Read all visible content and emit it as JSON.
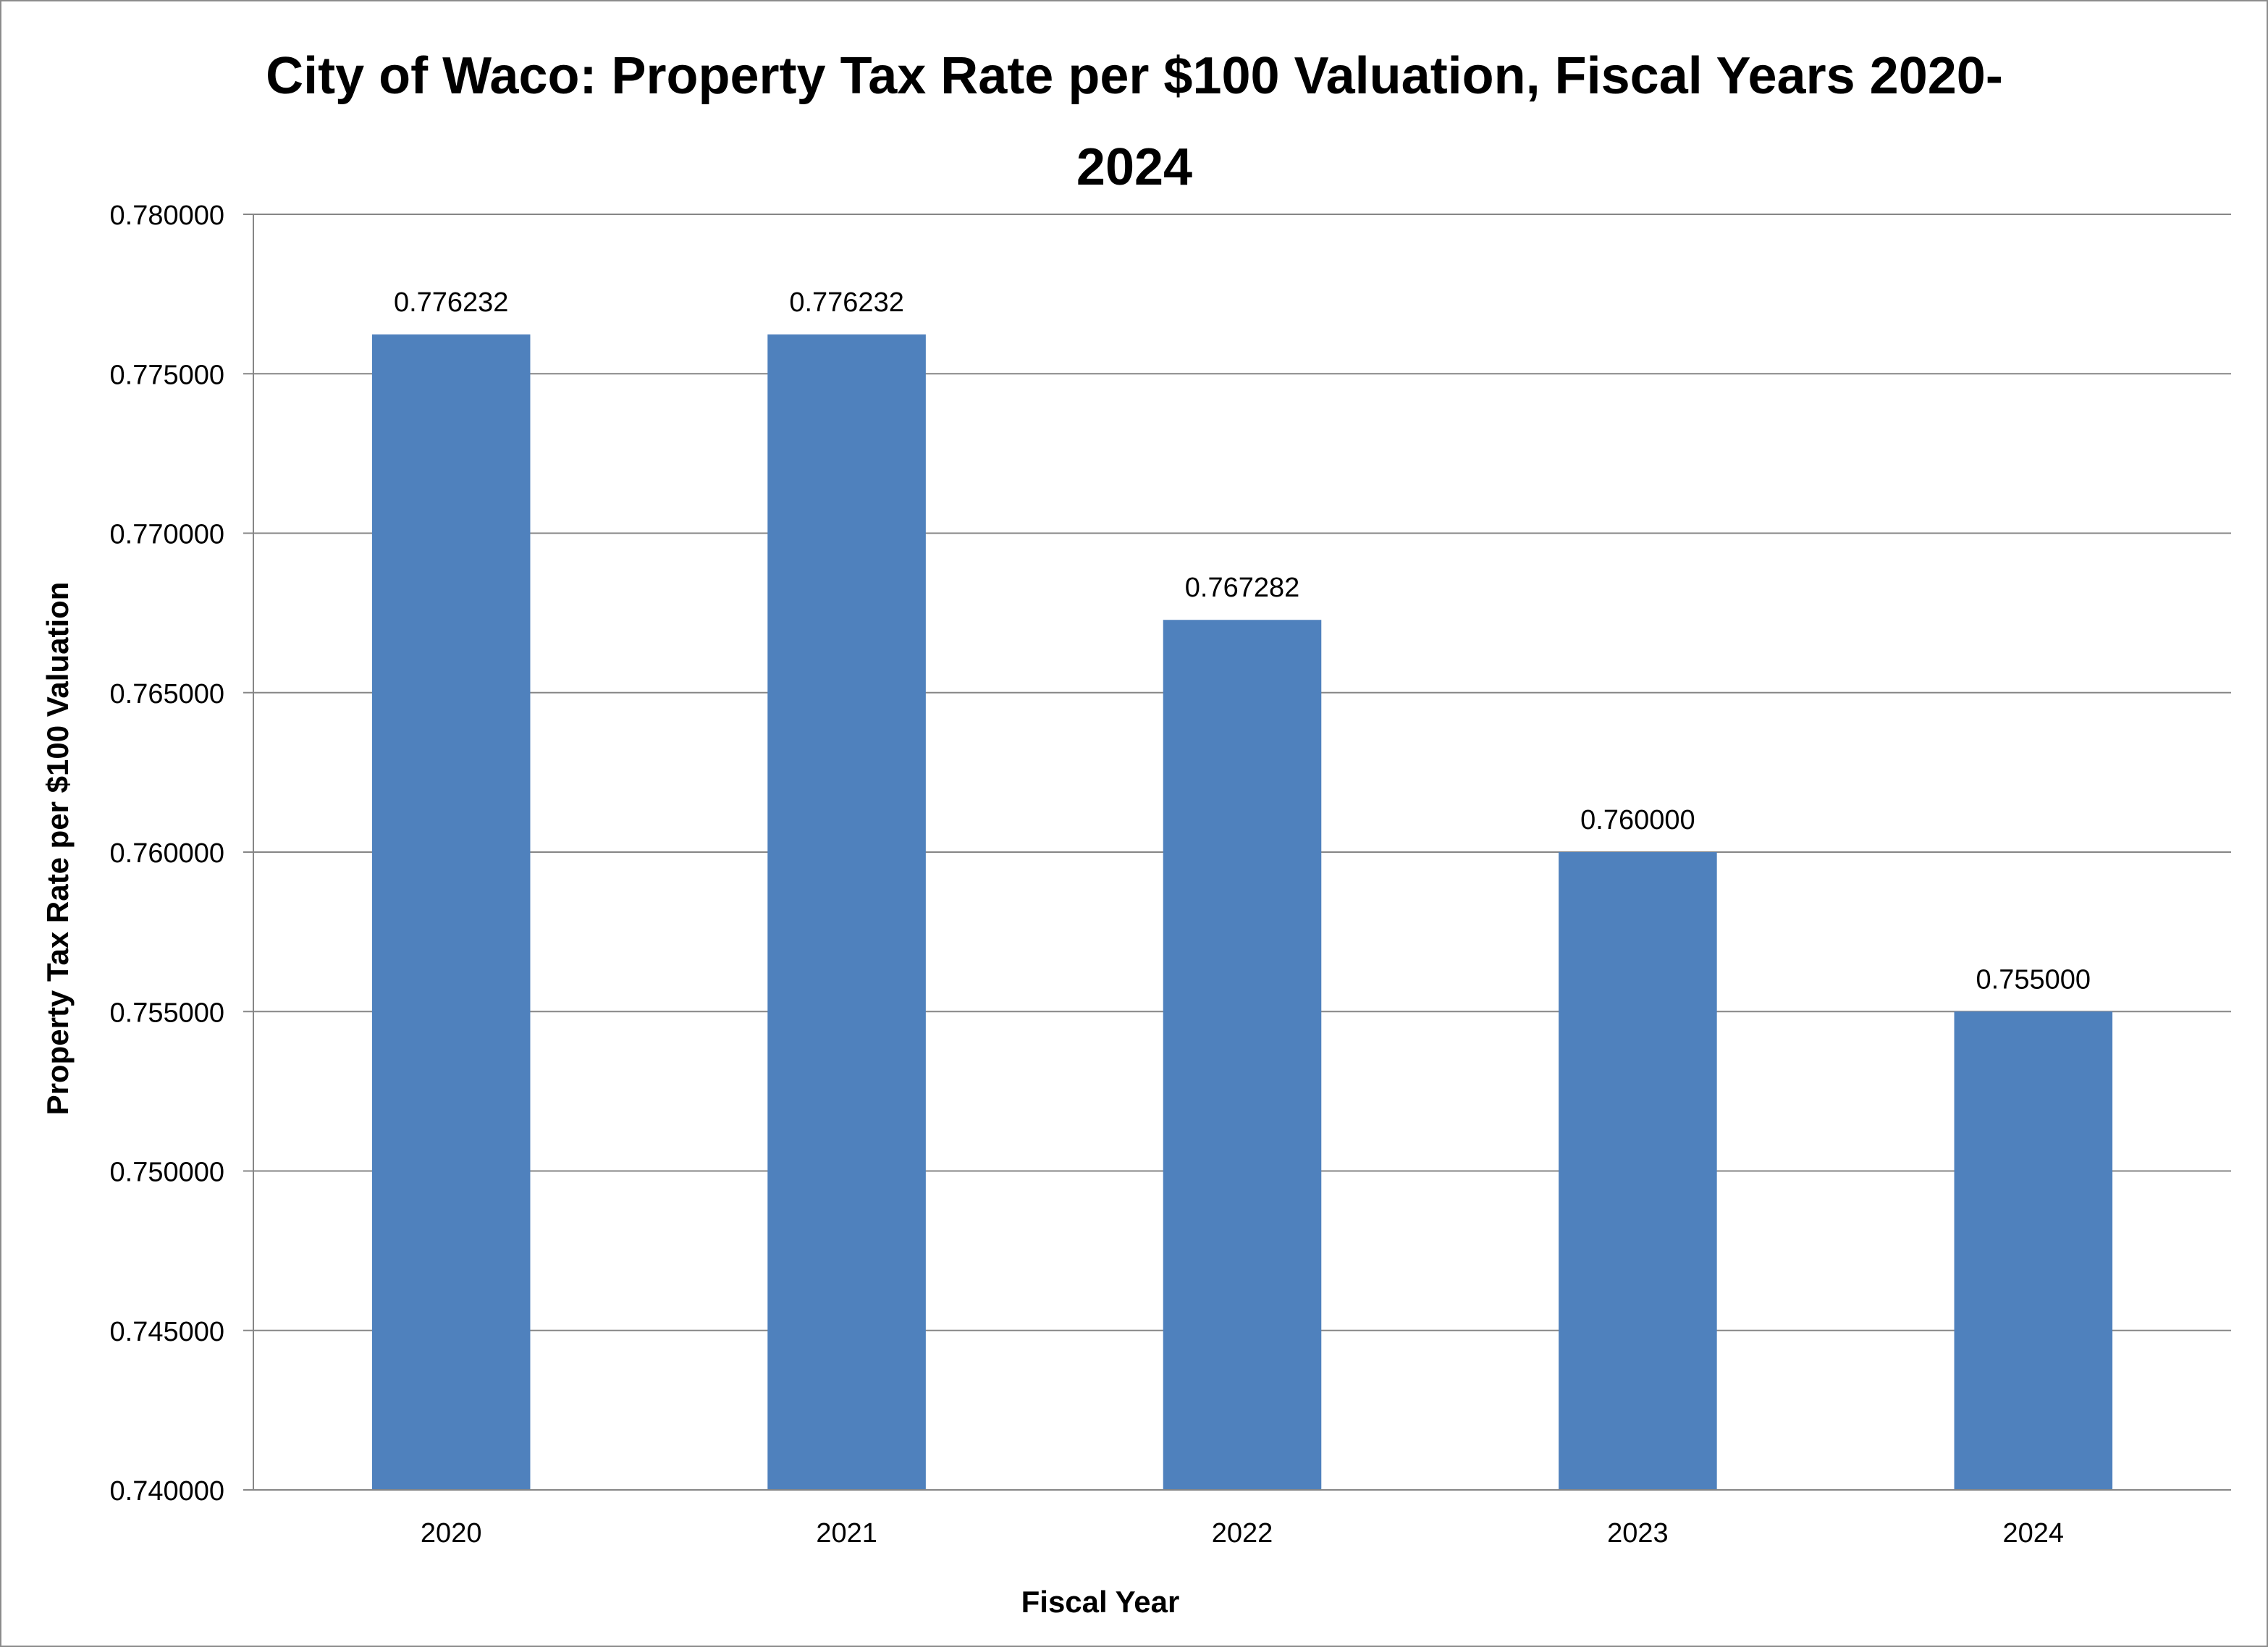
{
  "chart_data": {
    "type": "bar",
    "title": "City of Waco: Property Tax Rate per $100 Valuation, Fiscal Years 2020-2024",
    "xlabel": "Fiscal Year",
    "ylabel": "Property Tax Rate per $100 Valuation",
    "categories": [
      "2020",
      "2021",
      "2022",
      "2023",
      "2024"
    ],
    "values": [
      0.776232,
      0.776232,
      0.767282,
      0.76,
      0.755
    ],
    "data_labels": [
      "0.776232",
      "0.776232",
      "0.767282",
      "0.760000",
      "0.755000"
    ],
    "ylim": [
      0.74,
      0.78
    ],
    "yticks": [
      0.74,
      0.745,
      0.75,
      0.755,
      0.76,
      0.765,
      0.77,
      0.775,
      0.78
    ],
    "ytick_labels": [
      "0.740000",
      "0.745000",
      "0.750000",
      "0.755000",
      "0.760000",
      "0.765000",
      "0.770000",
      "0.775000",
      "0.780000"
    ],
    "bar_color": "#4f81bd",
    "gridline_color": "#868686",
    "grid": true,
    "legend": "none"
  }
}
